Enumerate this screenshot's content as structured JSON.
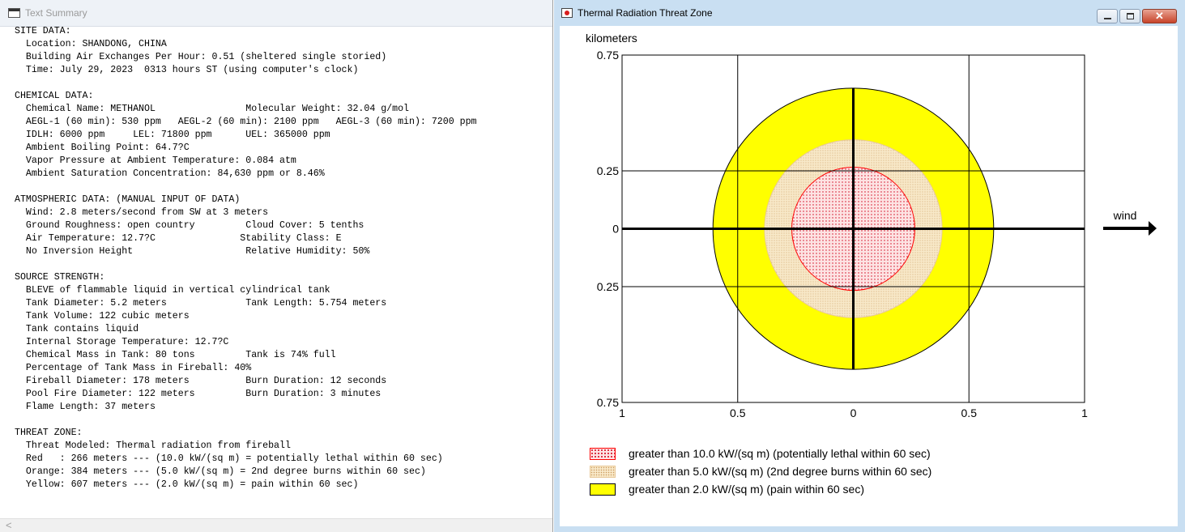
{
  "left_window": {
    "title": "Text Summary",
    "lines": [
      "SITE DATA:",
      "  Location: SHANDONG, CHINA",
      "  Building Air Exchanges Per Hour: 0.51 (sheltered single storied)",
      "  Time: July 29, 2023  0313 hours ST (using computer's clock)",
      "",
      "CHEMICAL DATA:",
      "  Chemical Name: METHANOL                Molecular Weight: 32.04 g/mol",
      "  AEGL-1 (60 min): 530 ppm   AEGL-2 (60 min): 2100 ppm   AEGL-3 (60 min): 7200 ppm",
      "  IDLH: 6000 ppm     LEL: 71800 ppm      UEL: 365000 ppm",
      "  Ambient Boiling Point: 64.7?C",
      "  Vapor Pressure at Ambient Temperature: 0.084 atm",
      "  Ambient Saturation Concentration: 84,630 ppm or 8.46%",
      "",
      "ATMOSPHERIC DATA: (MANUAL INPUT OF DATA)",
      "  Wind: 2.8 meters/second from SW at 3 meters",
      "  Ground Roughness: open country         Cloud Cover: 5 tenths",
      "  Air Temperature: 12.7?C               Stability Class: E",
      "  No Inversion Height                    Relative Humidity: 50%",
      "",
      "SOURCE STRENGTH:",
      "  BLEVE of flammable liquid in vertical cylindrical tank",
      "  Tank Diameter: 5.2 meters              Tank Length: 5.754 meters",
      "  Tank Volume: 122 cubic meters",
      "  Tank contains liquid",
      "  Internal Storage Temperature: 12.7?C",
      "  Chemical Mass in Tank: 80 tons         Tank is 74% full",
      "  Percentage of Tank Mass in Fireball: 40%",
      "  Fireball Diameter: 178 meters          Burn Duration: 12 seconds",
      "  Pool Fire Diameter: 122 meters         Burn Duration: 3 minutes",
      "  Flame Length: 37 meters",
      "",
      "THREAT ZONE:",
      "  Threat Modeled: Thermal radiation from fireball",
      "  Red   : 266 meters --- (10.0 kW/(sq m) = potentially lethal within 60 sec)",
      "  Orange: 384 meters --- (5.0 kW/(sq m) = 2nd degree burns within 60 sec)",
      "  Yellow: 607 meters --- (2.0 kW/(sq m) = pain within 60 sec)"
    ],
    "scroll_left_glyph": "<"
  },
  "right_window": {
    "title": "Thermal Radiation Threat Zone",
    "buttons": {
      "close_glyph": "✕"
    },
    "wind_label": "wind",
    "colors": {
      "red": "#ff0000",
      "red_fill": "#fde3e3",
      "orange": "#e8c898",
      "orange_fill": "#f8e9c9",
      "yellow": "#ffff00"
    }
  },
  "chart_data": {
    "type": "threat-zone",
    "xlabel": "kilometers",
    "ylabel": "kilometers",
    "xlim": [
      -1,
      1
    ],
    "ylim": [
      -0.75,
      0.75
    ],
    "x_ticks": [
      {
        "value": -1,
        "label": "1"
      },
      {
        "value": -0.5,
        "label": "0.5"
      },
      {
        "value": 0,
        "label": "0"
      },
      {
        "value": 0.5,
        "label": "0.5"
      },
      {
        "value": 1,
        "label": "1"
      }
    ],
    "y_ticks": [
      {
        "value": 0.75,
        "label": "0.75"
      },
      {
        "value": 0.25,
        "label": "0.25"
      },
      {
        "value": 0,
        "label": "0"
      },
      {
        "value": -0.25,
        "label": "0.25"
      },
      {
        "value": -0.75,
        "label": "0.75"
      }
    ],
    "zones": [
      {
        "name": "yellow",
        "radius_km": 0.607,
        "color": "#ffff00",
        "fill": "#ffff00",
        "legend": "greater than 2.0 kW/(sq m) (pain within 60 sec)"
      },
      {
        "name": "orange",
        "radius_km": 0.384,
        "color": "#e8c898",
        "fill": "#f8e9c9",
        "legend": "greater than 5.0 kW/(sq m) (2nd degree burns within 60 sec)"
      },
      {
        "name": "red",
        "radius_km": 0.266,
        "color": "#ff0000",
        "fill": "#fde3e3",
        "legend": "greater than 10.0 kW/(sq m) (potentially lethal within 60 sec)"
      }
    ],
    "legend_order": [
      "red",
      "orange",
      "yellow"
    ],
    "grid": true
  }
}
